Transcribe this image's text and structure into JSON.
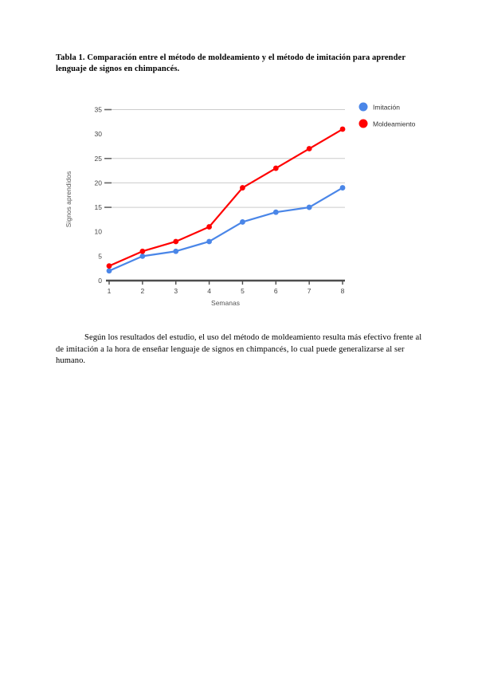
{
  "document": {
    "title": "Tabla 1. Comparación entre el método de moldeamiento y el método de imitación para aprender lenguaje de signos en chimpancés.",
    "paragraph": "Según los resultados del estudio, el uso del método de moldeamiento resulta más efectivo frente al de imitación a la hora de enseñar lenguaje de signos en chimpancés, lo cual puede generalizarse al ser humano."
  },
  "chart_data": {
    "type": "line",
    "x": [
      1,
      2,
      3,
      4,
      5,
      6,
      7,
      8
    ],
    "xlabel": "Semanas",
    "ylabel": "Signos aprendidos",
    "ylim": [
      0,
      35
    ],
    "yticks": [
      0,
      5,
      10,
      15,
      20,
      25,
      30,
      35
    ],
    "visible_gridlines": [
      15,
      20,
      25,
      35
    ],
    "legend_position": "top-right",
    "series": [
      {
        "name": "Imitación",
        "color": "#4a86e8",
        "values": [
          2,
          5,
          6,
          8,
          12,
          14,
          15,
          19
        ]
      },
      {
        "name": "Moldeamiento",
        "color": "#ff0000",
        "values": [
          3,
          6,
          8,
          11,
          19,
          23,
          27,
          31
        ]
      }
    ],
    "colors": {
      "gridline": "#cccccc",
      "axis_line": "#4d4d4d",
      "tick": "#666666"
    }
  }
}
